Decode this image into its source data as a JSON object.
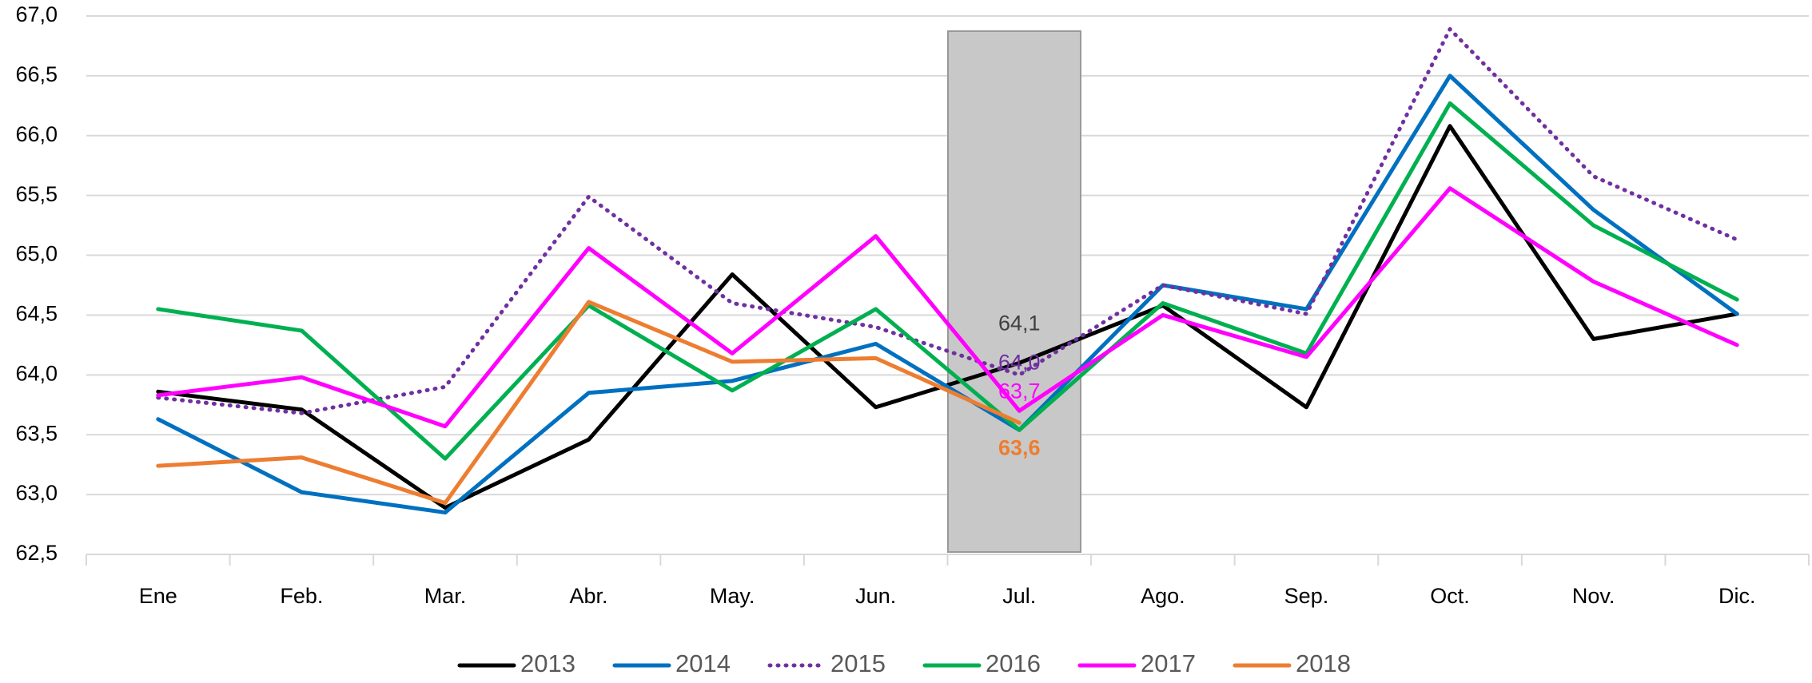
{
  "chart_data": {
    "type": "line",
    "categories": [
      "Ene",
      "Feb.",
      "Mar.",
      "Abr.",
      "May.",
      "Jun.",
      "Jul.",
      "Ago.",
      "Sep.",
      "Oct.",
      "Nov.",
      "Dic."
    ],
    "series": [
      {
        "name": "2013",
        "color": "#000000",
        "style": "solid",
        "values": [
          63.86,
          63.71,
          62.89,
          63.46,
          64.84,
          63.73,
          64.1,
          64.58,
          63.73,
          66.08,
          64.3,
          64.51
        ],
        "value_labels": [
          null,
          null,
          null,
          null,
          null,
          null,
          "64,1",
          null,
          null,
          null,
          null,
          null
        ]
      },
      {
        "name": "2014",
        "color": "#0070c0",
        "style": "solid",
        "values": [
          63.63,
          63.02,
          62.85,
          63.85,
          63.95,
          64.26,
          63.54,
          64.75,
          64.55,
          66.5,
          65.38,
          64.51
        ]
      },
      {
        "name": "2015",
        "color": "#7030a0",
        "style": "dotted",
        "values": [
          63.81,
          63.68,
          63.9,
          65.49,
          64.6,
          64.4,
          64.0,
          64.75,
          64.51,
          66.89,
          65.66,
          65.13
        ],
        "value_labels": [
          null,
          null,
          null,
          null,
          null,
          null,
          "64,0",
          null,
          null,
          null,
          null,
          null
        ]
      },
      {
        "name": "2016",
        "color": "#00b050",
        "style": "solid",
        "values": [
          64.55,
          64.37,
          63.3,
          64.58,
          63.87,
          64.55,
          63.54,
          64.6,
          64.18,
          66.27,
          65.25,
          64.63
        ]
      },
      {
        "name": "2017",
        "color": "#ff00ff",
        "style": "solid",
        "values": [
          63.83,
          63.98,
          63.57,
          65.06,
          64.18,
          65.16,
          63.7,
          64.5,
          64.15,
          65.56,
          64.78,
          64.25
        ],
        "value_labels": [
          null,
          null,
          null,
          null,
          null,
          null,
          "63,7",
          null,
          null,
          null,
          null,
          null
        ]
      },
      {
        "name": "2018",
        "color": "#ed7d31",
        "style": "solid",
        "values": [
          63.24,
          63.31,
          62.93,
          64.61,
          64.11,
          64.14,
          63.6,
          null,
          null,
          null,
          null,
          null
        ],
        "value_labels": [
          null,
          null,
          null,
          null,
          null,
          null,
          "63,6",
          null,
          null,
          null,
          null,
          null
        ]
      }
    ],
    "ylim": [
      62.5,
      67.0
    ],
    "yticks": [
      {
        "value": 62.5,
        "label": "62,5"
      },
      {
        "value": 63.0,
        "label": "63,0"
      },
      {
        "value": 63.5,
        "label": "63,5"
      },
      {
        "value": 64.0,
        "label": "64,0"
      },
      {
        "value": 64.5,
        "label": "64,5"
      },
      {
        "value": 65.0,
        "label": "65,0"
      },
      {
        "value": 65.5,
        "label": "65,5"
      },
      {
        "value": 66.0,
        "label": "66,0"
      },
      {
        "value": 66.5,
        "label": "66,5"
      },
      {
        "value": 67.0,
        "label": "67,0"
      }
    ],
    "grid": true,
    "legend": "bottom"
  }
}
